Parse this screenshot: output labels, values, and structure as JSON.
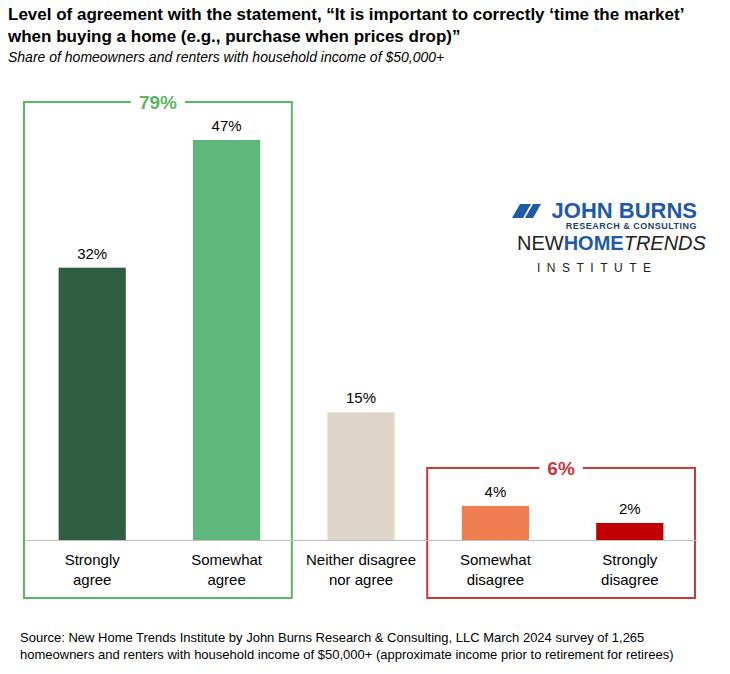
{
  "chart_data": {
    "type": "bar",
    "title": "Level of agreement with the statement, “It is important to correctly ‘time the market’ when buying a home (e.g., purchase when prices drop)”",
    "subtitle": "Share of homeowners and renters with household income of $50,000+",
    "categories": [
      "Strongly agree",
      "Somewhat agree",
      "Neither disagree nor agree",
      "Somewhat disagree",
      "Strongly disagree"
    ],
    "values": [
      32,
      47,
      15,
      4,
      2
    ],
    "value_labels": [
      "32%",
      "47%",
      "15%",
      "4%",
      "2%"
    ],
    "colors": [
      "#2f5f40",
      "#5fb87b",
      "#ddd6c8",
      "#f07d50",
      "#c00000"
    ],
    "data_labels": true,
    "tick_labels": "x",
    "annotations": [
      {
        "value": 79,
        "label": "79%",
        "categories": [
          "Strongly agree",
          "Somewhat agree"
        ],
        "color": "#5cb85c"
      },
      {
        "value": 6,
        "label": "6%",
        "categories": [
          "Somewhat disagree",
          "Strongly disagree"
        ],
        "color": "#c9393b"
      }
    ],
    "source": "Source: New Home Trends Institute by John Burns Research & Consulting, LLC March 2024 survey of 1,265 homeowners and renters with household income of $50,000+ (approximate income prior to retirement for retirees)"
  },
  "logo": {
    "name": "JOHN BURNS",
    "tagline": "RESEARCH & CONSULTING",
    "institute_parts": [
      "NEW",
      "HOME",
      "TRENDS"
    ],
    "institute_word": "INSTITUTE"
  }
}
